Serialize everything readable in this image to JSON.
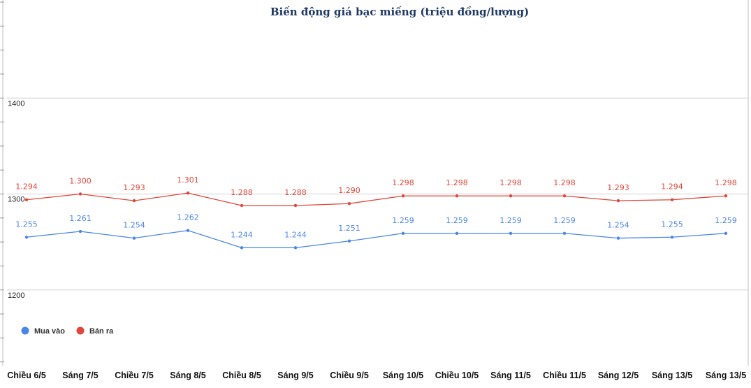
{
  "chart_data": {
    "type": "line",
    "title": "Biến động giá bạc miếng (triệu đồng/lượng)",
    "categories": [
      "Chiều 6/5",
      "Sáng 7/5",
      "Chiều 7/5",
      "Sáng 8/5",
      "Chiều 8/5",
      "Sáng 9/5",
      "Chiều 9/5",
      "Sáng 10/5",
      "Chiều 10/5",
      "Sáng 11/5",
      "Chiều 11/5",
      "Sáng 12/5",
      "Sáng 13/5",
      "Sáng 13/5"
    ],
    "series": [
      {
        "name": "Mua vào",
        "color": "#4a86e8",
        "values": [
          1255,
          1261,
          1254,
          1262,
          1244,
          1244,
          1251,
          1259,
          1259,
          1259,
          1259,
          1254,
          1255,
          1259
        ],
        "labels": [
          "1.255",
          "1.261",
          "1.254",
          "1.262",
          "1.244",
          "1.244",
          "1.251",
          "1.259",
          "1.259",
          "1.259",
          "1.259",
          "1.254",
          "1.255",
          "1.259"
        ]
      },
      {
        "name": "Bán ra",
        "color": "#e0463a",
        "values": [
          1294,
          1300,
          1293,
          1301,
          1288,
          1288,
          1290,
          1298,
          1298,
          1298,
          1298,
          1293,
          1294,
          1298
        ],
        "labels": [
          "1.294",
          "1.300",
          "1.293",
          "1.301",
          "1.288",
          "1.288",
          "1.290",
          "1.298",
          "1.298",
          "1.298",
          "1.298",
          "1.293",
          "1.294",
          "1.298"
        ]
      }
    ],
    "y_ticks": [
      "1200",
      "1300",
      "1400"
    ],
    "ylim": [
      1100,
      1500
    ],
    "grid": true,
    "legend_position": "bottom-left"
  }
}
